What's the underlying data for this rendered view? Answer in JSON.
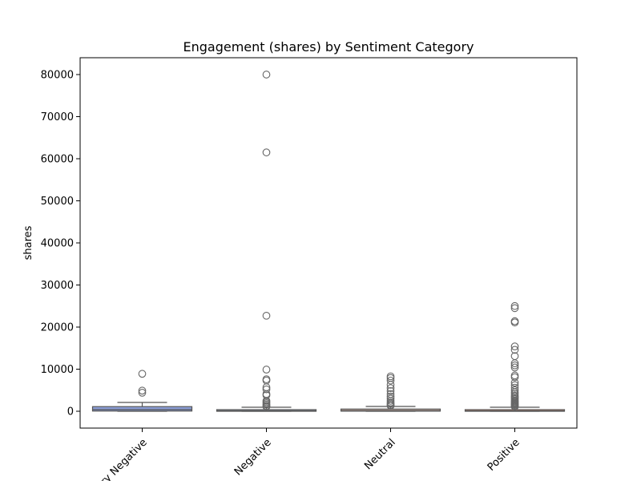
{
  "chart_data": {
    "type": "box",
    "title": "Engagement (shares) by Sentiment Category",
    "xlabel": "",
    "ylabel": "shares",
    "ylim": [
      -4000,
      84000
    ],
    "yticks": [
      0,
      10000,
      20000,
      30000,
      40000,
      50000,
      60000,
      70000,
      80000
    ],
    "ytick_labels": [
      "0",
      "10000",
      "20000",
      "30000",
      "40000",
      "50000",
      "60000",
      "70000",
      "80000"
    ],
    "categories": [
      "Very Negative",
      "Negative",
      "Neutral",
      "Positive"
    ],
    "grid": false,
    "boxes": [
      {
        "name": "Very Negative",
        "color": "#8c9fd8",
        "whisker_low": 0,
        "q1": 50,
        "median": 400,
        "q3": 1100,
        "whisker_high": 2100,
        "outliers": [
          4400,
          4900,
          8900
        ]
      },
      {
        "name": "Negative",
        "color": "#b4c3e0",
        "whisker_low": 0,
        "q1": 20,
        "median": 120,
        "q3": 380,
        "whisker_high": 950,
        "outliers": [
          1100,
          1300,
          1600,
          1900,
          2200,
          2500,
          3800,
          4100,
          5200,
          5700,
          7300,
          7600,
          9900,
          22700,
          61500,
          80000
        ]
      },
      {
        "name": "Neutral",
        "color": "#e8c3b5",
        "whisker_low": 0,
        "q1": 30,
        "median": 180,
        "q3": 520,
        "whisker_high": 1150,
        "outliers": [
          1300,
          1500,
          1800,
          2100,
          2500,
          3000,
          3500,
          4100,
          4800,
          5500,
          6300,
          7300,
          7900,
          8300
        ]
      },
      {
        "name": "Positive",
        "color": "#e9997d",
        "whisker_low": 0,
        "q1": 20,
        "median": 110,
        "q3": 380,
        "whisker_high": 950,
        "outliers": [
          1100,
          1300,
          1500,
          1700,
          1900,
          2100,
          2300,
          2500,
          2800,
          3100,
          3400,
          3700,
          4100,
          4500,
          5000,
          5600,
          6200,
          6800,
          8100,
          8500,
          10400,
          10900,
          11400,
          13100,
          14600,
          15400,
          21100,
          21400,
          24500,
          25000
        ]
      }
    ]
  }
}
